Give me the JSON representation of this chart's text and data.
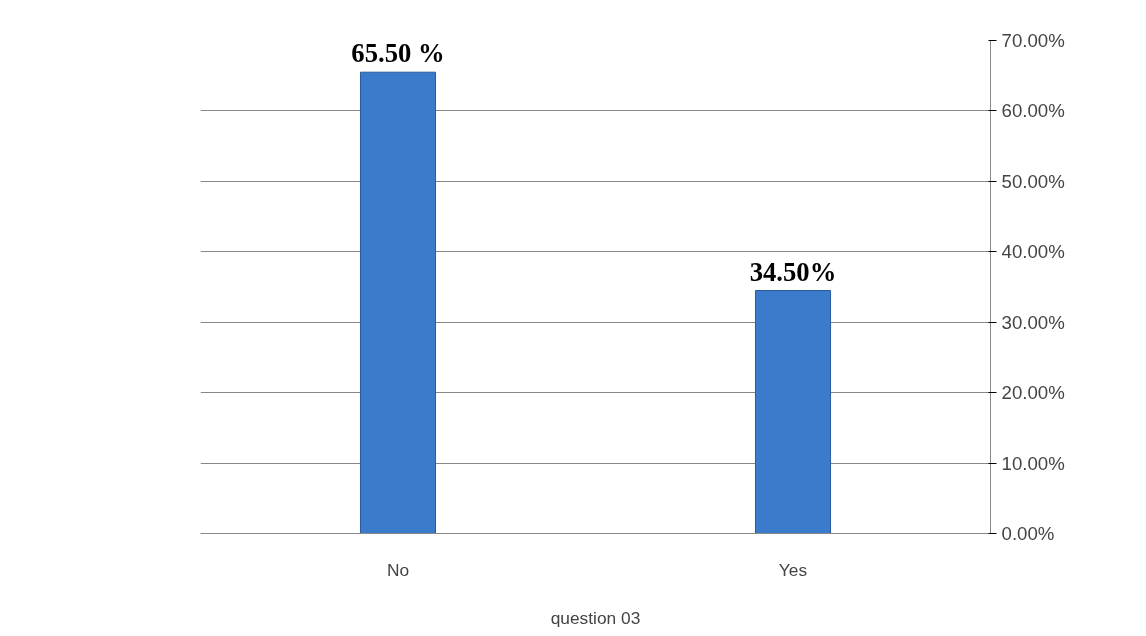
{
  "chart_data": {
    "type": "bar",
    "categories": [
      "No",
      "Yes"
    ],
    "values": [
      65.5,
      34.5
    ],
    "value_labels": [
      "65.50 %",
      "34.50%"
    ],
    "color": "#3b7bcc",
    "xlabel": "question 03",
    "ylim": [
      0,
      70
    ],
    "yticks": [
      {
        "value": 0,
        "label": "0.00%"
      },
      {
        "value": 10,
        "label": "10.00%"
      },
      {
        "value": 20,
        "label": "20.00%"
      },
      {
        "value": 30,
        "label": "30.00%"
      },
      {
        "value": 40,
        "label": "40.00%"
      },
      {
        "value": 50,
        "label": "50.00%"
      },
      {
        "value": 60,
        "label": "60.00%"
      },
      {
        "value": 70,
        "label": "70.00%"
      }
    ],
    "grid": "y"
  }
}
